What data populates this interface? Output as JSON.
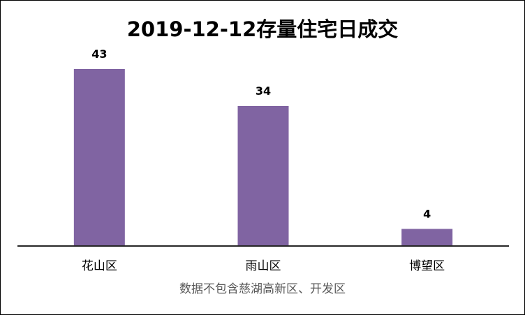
{
  "chart_data": {
    "type": "bar",
    "title": "2019-12-12存量住宅日成交",
    "categories": [
      "花山区",
      "雨山区",
      "博望区"
    ],
    "values": [
      43,
      34,
      4
    ],
    "ylim": [
      0,
      43
    ],
    "grid": false,
    "legend": "none",
    "bar_color": "#8064A2",
    "data_labels": true,
    "footnote": "数据不包含慈湖高新区、开发区"
  }
}
